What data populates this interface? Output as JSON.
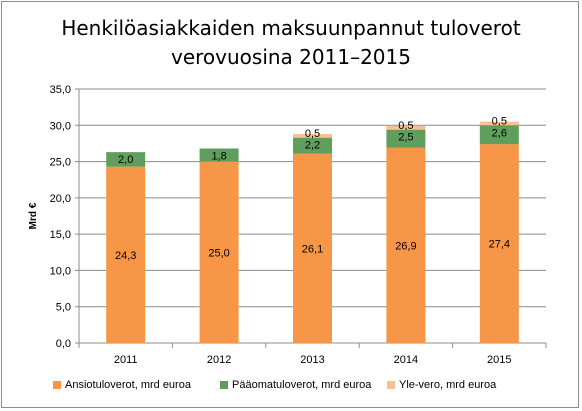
{
  "title_line1": "Henkilöasiakkaiden maksuunpannut tuloverot",
  "title_line2": "verovuosina 2011–2015",
  "chart_data": {
    "type": "bar",
    "stacked": true,
    "title": "Henkilöasiakkaiden maksuunpannut tuloverot verovuosina 2011–2015",
    "xlabel": "",
    "ylabel": "Mrd €",
    "ylim": [
      0,
      35
    ],
    "ytick_step": 5,
    "ytick_labels": [
      "0,0",
      "5,0",
      "10,0",
      "15,0",
      "20,0",
      "25,0",
      "30,0",
      "35,0"
    ],
    "grid": true,
    "legend_position": "bottom",
    "categories": [
      "2011",
      "2012",
      "2013",
      "2014",
      "2015"
    ],
    "series": [
      {
        "name": "Ansiotuloverot, mrd euroa",
        "color": "#f79646",
        "values": [
          24.3,
          25.0,
          26.1,
          26.9,
          27.4
        ],
        "labels": [
          "24,3",
          "25,0",
          "26,1",
          "26,9",
          "27,4"
        ]
      },
      {
        "name": "Pääomatuloverot, mrd euroa",
        "color": "#5f9e5c",
        "values": [
          2.0,
          1.8,
          2.2,
          2.5,
          2.6
        ],
        "labels": [
          "2,0",
          "1,8",
          "2,2",
          "2,5",
          "2,6"
        ]
      },
      {
        "name": "Yle-vero, mrd euroa",
        "color": "#fac090",
        "values": [
          0,
          0,
          0.5,
          0.5,
          0.5
        ],
        "labels": [
          "",
          "",
          "0,5",
          "0,5",
          "0,5"
        ]
      }
    ]
  }
}
